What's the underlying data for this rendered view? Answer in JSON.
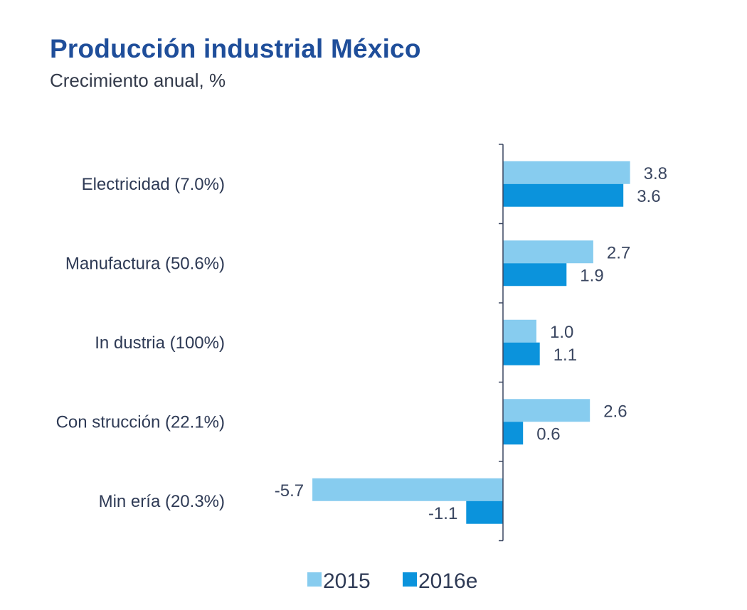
{
  "title": "Producción industrial México",
  "subtitle": "Crecimiento anual, %",
  "colors": {
    "s2015": "#87ccef",
    "s2016": "#0b93dc",
    "axis": "#3a4660",
    "title": "#1f4e9a"
  },
  "chart_data": {
    "type": "bar",
    "orientation": "horizontal",
    "title": "Producción industrial México",
    "subtitle": "Crecimiento anual, %",
    "categories": [
      "Electricidad (7.0%)",
      "Manufactura (50.6%)",
      "In dustria (100%)",
      "Con strucción (22.1%)",
      "Min ería (20.3%)"
    ],
    "series": [
      {
        "name": "2015",
        "values": [
          3.8,
          2.7,
          1.0,
          2.6,
          -5.7
        ],
        "labels": [
          "3.8",
          "2.7",
          "1.0",
          "2.6",
          "-5.7"
        ]
      },
      {
        "name": "2016e",
        "values": [
          3.6,
          1.9,
          1.1,
          0.6,
          -1.1
        ],
        "labels": [
          "3.6",
          "1.9",
          "1.1",
          "0.6",
          "-1.1"
        ]
      }
    ],
    "xlim": [
      -5.7,
      3.8
    ],
    "grid": false,
    "legend": "bottom"
  }
}
